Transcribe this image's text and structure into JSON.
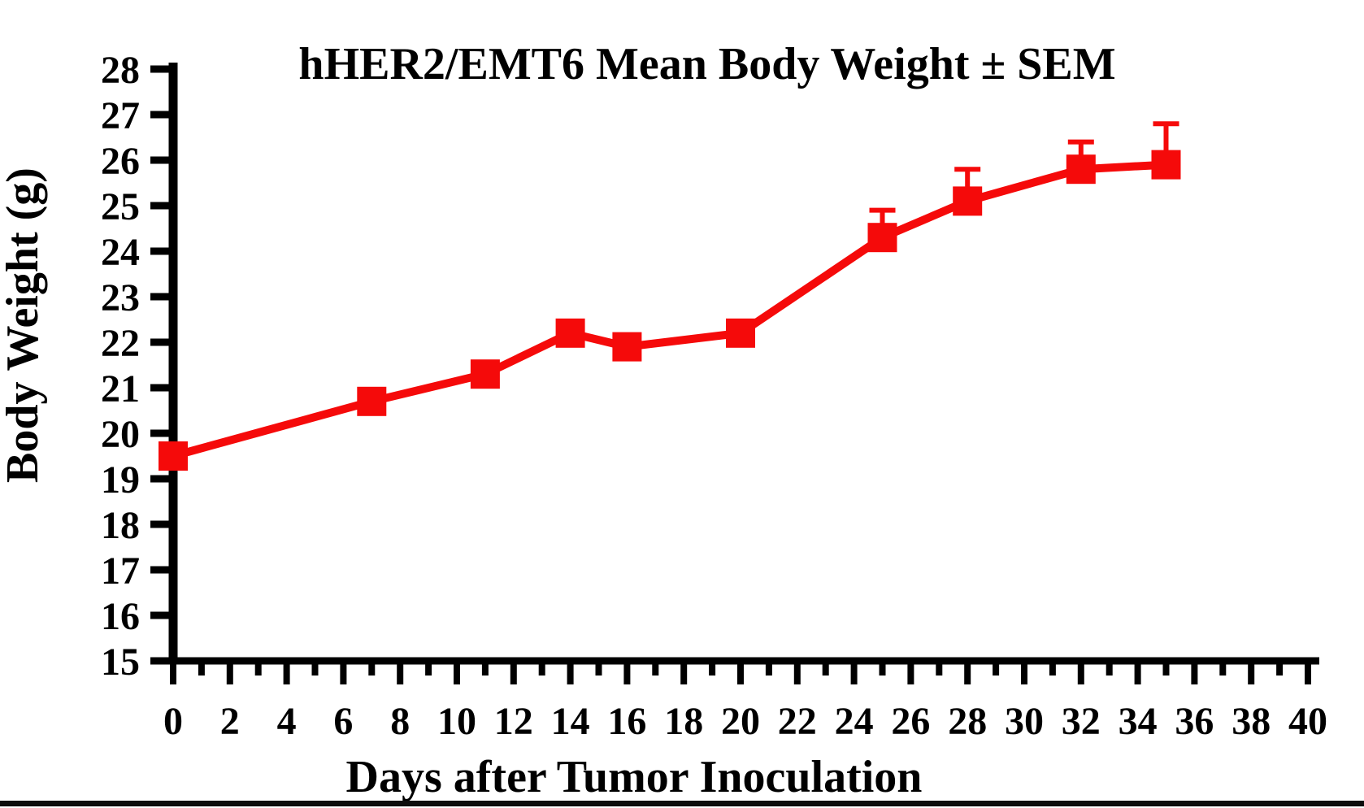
{
  "figure": {
    "title": "hHER2/EMT6 Mean Body Weight ± SEM",
    "x_axis_label": "Days after Tumor Inoculation",
    "y_axis_label": "Body Weight (g)"
  },
  "colors": {
    "series": "#f50a0a",
    "axis": "#000000",
    "text": "#000000",
    "background": "#ffffff",
    "footer_bar": "#0d0d0d"
  },
  "chart_data": {
    "type": "line",
    "title": "hHER2/EMT6 Mean Body Weight ± SEM",
    "xlabel": "Days after Tumor Inoculation",
    "ylabel": "Body Weight (g)",
    "x": [
      0,
      7,
      11,
      14,
      16,
      20,
      25,
      28,
      32,
      35
    ],
    "series": [
      {
        "name": "hHER2/EMT6 mean body weight",
        "marker": "filled-square",
        "color": "#f50a0a",
        "values": [
          19.5,
          20.7,
          21.3,
          22.2,
          21.9,
          22.2,
          24.3,
          25.1,
          25.8,
          25.9
        ],
        "sem_upper": [
          null,
          null,
          null,
          null,
          null,
          null,
          0.6,
          0.7,
          0.6,
          0.9
        ]
      }
    ],
    "error_bars": "upper SEM whiskers with caps shown on days 25, 28, 32, 35",
    "xlim": [
      0,
      40
    ],
    "ylim": [
      15,
      28
    ],
    "x_ticks": [
      0,
      2,
      4,
      6,
      8,
      10,
      12,
      14,
      16,
      18,
      20,
      22,
      24,
      26,
      28,
      30,
      32,
      34,
      36,
      38,
      40
    ],
    "x_minor_tick_interval": 1,
    "y_ticks": [
      15,
      16,
      17,
      18,
      19,
      20,
      21,
      22,
      23,
      24,
      25,
      26,
      27,
      28
    ],
    "grid": false,
    "legend": false
  }
}
